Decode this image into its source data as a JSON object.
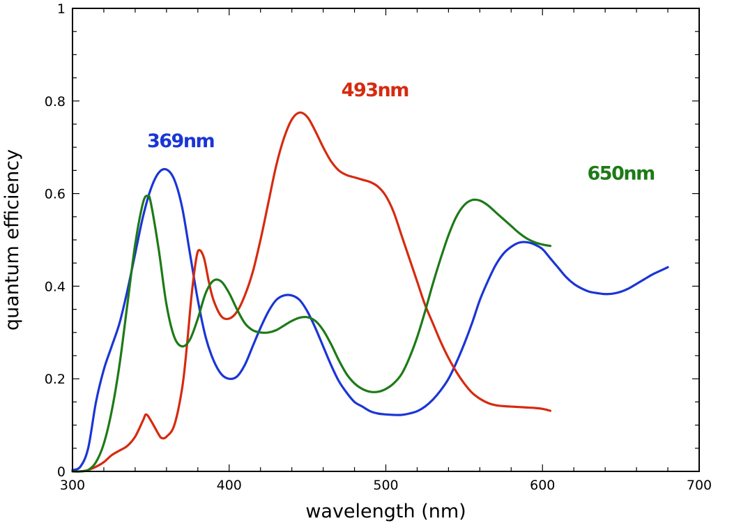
{
  "chart_data": {
    "type": "line",
    "title": "",
    "xlabel": "wavelength (nm)",
    "ylabel": "quantum efficiency",
    "xlim": [
      300,
      700
    ],
    "ylim": [
      0,
      1
    ],
    "grid": false,
    "legend": "none",
    "x_ticks": [
      300,
      400,
      500,
      600,
      700
    ],
    "x_tick_labels": [
      "300",
      "400",
      "500",
      "600",
      "700"
    ],
    "y_ticks": [
      0,
      0.2,
      0.4,
      0.6,
      0.8,
      1
    ],
    "y_tick_labels": [
      "0",
      "0.2",
      "0.4",
      "0.6",
      "0.8",
      "1"
    ],
    "series": [
      {
        "name": "369nm",
        "label": "369nm",
        "color": "#1a35d6",
        "label_anchor": [
          369,
          0.7
        ],
        "points": [
          [
            300,
            0.003
          ],
          [
            305,
            0.01
          ],
          [
            310,
            0.05
          ],
          [
            315,
            0.15
          ],
          [
            320,
            0.22
          ],
          [
            325,
            0.27
          ],
          [
            330,
            0.32
          ],
          [
            335,
            0.39
          ],
          [
            340,
            0.47
          ],
          [
            345,
            0.55
          ],
          [
            350,
            0.61
          ],
          [
            355,
            0.645
          ],
          [
            360,
            0.652
          ],
          [
            365,
            0.63
          ],
          [
            370,
            0.57
          ],
          [
            375,
            0.47
          ],
          [
            380,
            0.37
          ],
          [
            385,
            0.29
          ],
          [
            390,
            0.24
          ],
          [
            395,
            0.21
          ],
          [
            400,
            0.2
          ],
          [
            405,
            0.205
          ],
          [
            410,
            0.23
          ],
          [
            415,
            0.27
          ],
          [
            420,
            0.31
          ],
          [
            425,
            0.345
          ],
          [
            430,
            0.37
          ],
          [
            435,
            0.38
          ],
          [
            440,
            0.38
          ],
          [
            445,
            0.37
          ],
          [
            450,
            0.345
          ],
          [
            455,
            0.31
          ],
          [
            460,
            0.27
          ],
          [
            465,
            0.23
          ],
          [
            470,
            0.195
          ],
          [
            475,
            0.17
          ],
          [
            480,
            0.15
          ],
          [
            485,
            0.14
          ],
          [
            490,
            0.13
          ],
          [
            495,
            0.125
          ],
          [
            500,
            0.123
          ],
          [
            505,
            0.122
          ],
          [
            510,
            0.122
          ],
          [
            515,
            0.125
          ],
          [
            520,
            0.13
          ],
          [
            525,
            0.14
          ],
          [
            530,
            0.155
          ],
          [
            535,
            0.175
          ],
          [
            540,
            0.2
          ],
          [
            545,
            0.235
          ],
          [
            550,
            0.275
          ],
          [
            555,
            0.32
          ],
          [
            560,
            0.37
          ],
          [
            565,
            0.41
          ],
          [
            570,
            0.445
          ],
          [
            575,
            0.47
          ],
          [
            580,
            0.485
          ],
          [
            585,
            0.494
          ],
          [
            590,
            0.495
          ],
          [
            595,
            0.49
          ],
          [
            600,
            0.48
          ],
          [
            605,
            0.46
          ],
          [
            610,
            0.44
          ],
          [
            615,
            0.42
          ],
          [
            620,
            0.405
          ],
          [
            625,
            0.395
          ],
          [
            630,
            0.388
          ],
          [
            635,
            0.385
          ],
          [
            640,
            0.383
          ],
          [
            645,
            0.384
          ],
          [
            650,
            0.388
          ],
          [
            655,
            0.395
          ],
          [
            660,
            0.405
          ],
          [
            665,
            0.415
          ],
          [
            670,
            0.425
          ],
          [
            675,
            0.433
          ],
          [
            680,
            0.441
          ]
        ]
      },
      {
        "name": "493nm",
        "label": "493nm",
        "color": "#d62a0f",
        "label_anchor": [
          493,
          0.81
        ],
        "points": [
          [
            300,
            0.0
          ],
          [
            305,
            0.0
          ],
          [
            310,
            0.003
          ],
          [
            315,
            0.01
          ],
          [
            320,
            0.02
          ],
          [
            325,
            0.035
          ],
          [
            330,
            0.045
          ],
          [
            335,
            0.055
          ],
          [
            340,
            0.075
          ],
          [
            345,
            0.11
          ],
          [
            347,
            0.123
          ],
          [
            350,
            0.11
          ],
          [
            355,
            0.08
          ],
          [
            357,
            0.072
          ],
          [
            360,
            0.075
          ],
          [
            365,
            0.1
          ],
          [
            370,
            0.18
          ],
          [
            373,
            0.27
          ],
          [
            376,
            0.38
          ],
          [
            379,
            0.46
          ],
          [
            381,
            0.478
          ],
          [
            384,
            0.46
          ],
          [
            387,
            0.41
          ],
          [
            390,
            0.37
          ],
          [
            395,
            0.335
          ],
          [
            400,
            0.33
          ],
          [
            405,
            0.345
          ],
          [
            410,
            0.38
          ],
          [
            415,
            0.43
          ],
          [
            420,
            0.5
          ],
          [
            425,
            0.58
          ],
          [
            430,
            0.66
          ],
          [
            435,
            0.72
          ],
          [
            440,
            0.76
          ],
          [
            445,
            0.775
          ],
          [
            450,
            0.765
          ],
          [
            455,
            0.735
          ],
          [
            460,
            0.7
          ],
          [
            465,
            0.67
          ],
          [
            470,
            0.65
          ],
          [
            475,
            0.64
          ],
          [
            480,
            0.635
          ],
          [
            485,
            0.63
          ],
          [
            490,
            0.625
          ],
          [
            495,
            0.615
          ],
          [
            500,
            0.595
          ],
          [
            505,
            0.56
          ],
          [
            510,
            0.51
          ],
          [
            515,
            0.46
          ],
          [
            520,
            0.41
          ],
          [
            525,
            0.36
          ],
          [
            530,
            0.32
          ],
          [
            535,
            0.28
          ],
          [
            540,
            0.245
          ],
          [
            545,
            0.215
          ],
          [
            550,
            0.19
          ],
          [
            555,
            0.17
          ],
          [
            560,
            0.157
          ],
          [
            565,
            0.148
          ],
          [
            570,
            0.143
          ],
          [
            575,
            0.141
          ],
          [
            580,
            0.14
          ],
          [
            585,
            0.139
          ],
          [
            590,
            0.138
          ],
          [
            595,
            0.137
          ],
          [
            600,
            0.135
          ],
          [
            605,
            0.131
          ]
        ]
      },
      {
        "name": "650nm",
        "label": "650nm",
        "color": "#1d7a17",
        "label_anchor": [
          650,
          0.63
        ],
        "points": [
          [
            300,
            0.0
          ],
          [
            305,
            0.0
          ],
          [
            310,
            0.003
          ],
          [
            315,
            0.02
          ],
          [
            320,
            0.06
          ],
          [
            325,
            0.13
          ],
          [
            330,
            0.23
          ],
          [
            335,
            0.36
          ],
          [
            340,
            0.49
          ],
          [
            345,
            0.58
          ],
          [
            348,
            0.595
          ],
          [
            350,
            0.58
          ],
          [
            355,
            0.48
          ],
          [
            360,
            0.36
          ],
          [
            365,
            0.29
          ],
          [
            370,
            0.27
          ],
          [
            375,
            0.285
          ],
          [
            380,
            0.33
          ],
          [
            385,
            0.385
          ],
          [
            390,
            0.412
          ],
          [
            395,
            0.41
          ],
          [
            400,
            0.385
          ],
          [
            405,
            0.35
          ],
          [
            410,
            0.32
          ],
          [
            415,
            0.305
          ],
          [
            420,
            0.3
          ],
          [
            425,
            0.3
          ],
          [
            430,
            0.305
          ],
          [
            435,
            0.315
          ],
          [
            440,
            0.325
          ],
          [
            445,
            0.332
          ],
          [
            450,
            0.333
          ],
          [
            455,
            0.325
          ],
          [
            460,
            0.305
          ],
          [
            465,
            0.275
          ],
          [
            470,
            0.24
          ],
          [
            475,
            0.21
          ],
          [
            480,
            0.19
          ],
          [
            485,
            0.178
          ],
          [
            490,
            0.172
          ],
          [
            495,
            0.172
          ],
          [
            500,
            0.178
          ],
          [
            505,
            0.19
          ],
          [
            510,
            0.21
          ],
          [
            515,
            0.245
          ],
          [
            520,
            0.29
          ],
          [
            525,
            0.345
          ],
          [
            530,
            0.405
          ],
          [
            535,
            0.46
          ],
          [
            540,
            0.51
          ],
          [
            545,
            0.55
          ],
          [
            550,
            0.575
          ],
          [
            555,
            0.586
          ],
          [
            560,
            0.585
          ],
          [
            565,
            0.575
          ],
          [
            570,
            0.56
          ],
          [
            575,
            0.545
          ],
          [
            580,
            0.53
          ],
          [
            585,
            0.515
          ],
          [
            590,
            0.503
          ],
          [
            595,
            0.495
          ],
          [
            600,
            0.49
          ],
          [
            605,
            0.487
          ]
        ]
      }
    ]
  }
}
